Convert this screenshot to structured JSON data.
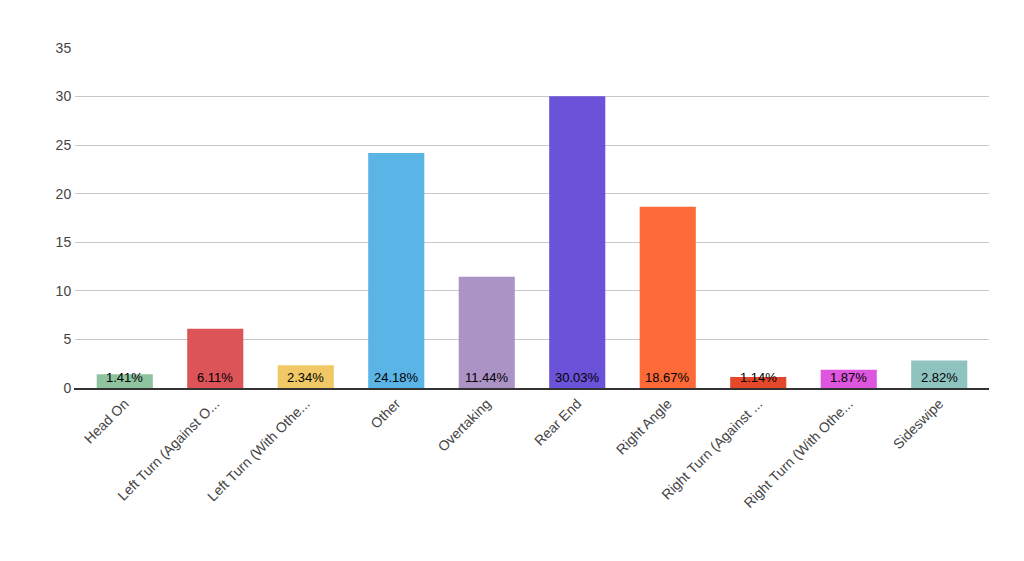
{
  "chart_data": {
    "type": "bar",
    "categories": [
      "Head On",
      "Left Turn (Against O...",
      "Left Turn (With Othe...",
      "Other",
      "Overtaking",
      "Rear End",
      "Right Angle",
      "Right Turn (Against ...",
      "Right Turn (With Othe...",
      "Sideswipe"
    ],
    "values": [
      1.41,
      6.11,
      2.34,
      24.18,
      11.44,
      30.03,
      18.67,
      1.14,
      1.87,
      2.82
    ],
    "value_labels": [
      "1.41%",
      "6.11%",
      "2.34%",
      "24.18%",
      "11.44%",
      "30.03%",
      "18.67%",
      "1.14%",
      "1.87%",
      "2.82%"
    ],
    "colors": [
      "#8fc3a0",
      "#dc5358",
      "#f0c865",
      "#5ab4e5",
      "#ac93c6",
      "#6a52d9",
      "#fd6a38",
      "#e3482b",
      "#de55de",
      "#8fc3c0"
    ],
    "ylim": [
      0,
      35
    ],
    "yticks": [
      0,
      5,
      10,
      15,
      20,
      25,
      30,
      35
    ],
    "grid": true,
    "data_labels": true
  }
}
